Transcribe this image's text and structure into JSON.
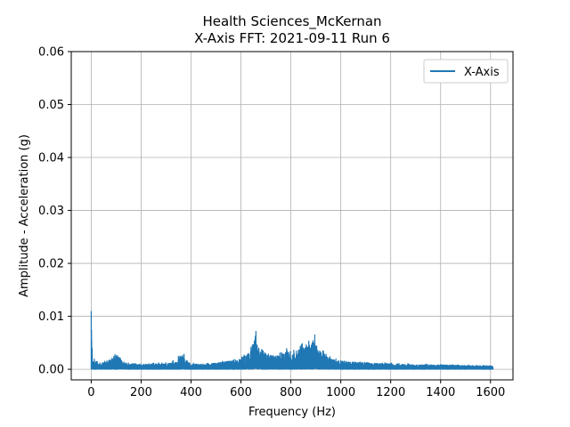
{
  "chart_data": {
    "type": "line",
    "title": "Health Sciences_McKernan",
    "subtitle": "X-Axis FFT: 2021-09-11 Run 6",
    "xlabel": "Frequency (Hz)",
    "ylabel": "Amplitude - Acceleration (g)",
    "xlim": [
      -80,
      1690
    ],
    "ylim": [
      -0.002,
      0.06
    ],
    "x_ticks": [
      0,
      200,
      400,
      600,
      800,
      1000,
      1200,
      1400,
      1600
    ],
    "y_ticks": [
      0.0,
      0.01,
      0.02,
      0.03,
      0.04,
      0.05,
      0.06
    ],
    "x_tick_labels": [
      "0",
      "200",
      "400",
      "600",
      "800",
      "1000",
      "1200",
      "1400",
      "1600"
    ],
    "y_tick_labels": [
      "0.00",
      "0.01",
      "0.02",
      "0.03",
      "0.04",
      "0.05",
      "0.06"
    ],
    "grid": true,
    "legend": "top-right",
    "series": [
      {
        "name": "X-Axis",
        "color": "#1f77b4",
        "x": [
          0,
          2,
          5,
          10,
          20,
          40,
          60,
          80,
          100,
          110,
          120,
          150,
          200,
          250,
          300,
          340,
          360,
          370,
          380,
          400,
          450,
          500,
          550,
          600,
          620,
          640,
          655,
          660,
          670,
          700,
          720,
          760,
          790,
          800,
          830,
          860,
          880,
          895,
          905,
          920,
          950,
          1000,
          1050,
          1100,
          1200,
          1300,
          1400,
          1500,
          1600,
          1610
        ],
        "envelope_max": [
          0.011,
          0.009,
          0.0035,
          0.0025,
          0.0018,
          0.0015,
          0.002,
          0.0022,
          0.003,
          0.0032,
          0.0022,
          0.0012,
          0.001,
          0.0012,
          0.0013,
          0.0018,
          0.0032,
          0.0035,
          0.0022,
          0.0012,
          0.001,
          0.0014,
          0.0018,
          0.0022,
          0.003,
          0.0045,
          0.006,
          0.0078,
          0.0055,
          0.0035,
          0.003,
          0.0032,
          0.0042,
          0.0035,
          0.0045,
          0.0052,
          0.006,
          0.0068,
          0.0055,
          0.004,
          0.0025,
          0.0018,
          0.0015,
          0.0013,
          0.0012,
          0.001,
          0.0009,
          0.0008,
          0.0007,
          0.0005
        ],
        "envelope_mean": [
          0.006,
          0.004,
          0.0015,
          0.001,
          0.0008,
          0.0007,
          0.0009,
          0.001,
          0.0014,
          0.0015,
          0.001,
          0.0006,
          0.0005,
          0.0006,
          0.0006,
          0.0008,
          0.0014,
          0.0016,
          0.001,
          0.0006,
          0.0005,
          0.0007,
          0.0009,
          0.0011,
          0.0015,
          0.0022,
          0.003,
          0.0035,
          0.0026,
          0.0017,
          0.0015,
          0.0016,
          0.002,
          0.0017,
          0.0022,
          0.0025,
          0.0028,
          0.0032,
          0.0026,
          0.002,
          0.0012,
          0.0009,
          0.0008,
          0.0007,
          0.0006,
          0.0005,
          0.0005,
          0.0004,
          0.0004,
          0.0003
        ]
      }
    ]
  }
}
